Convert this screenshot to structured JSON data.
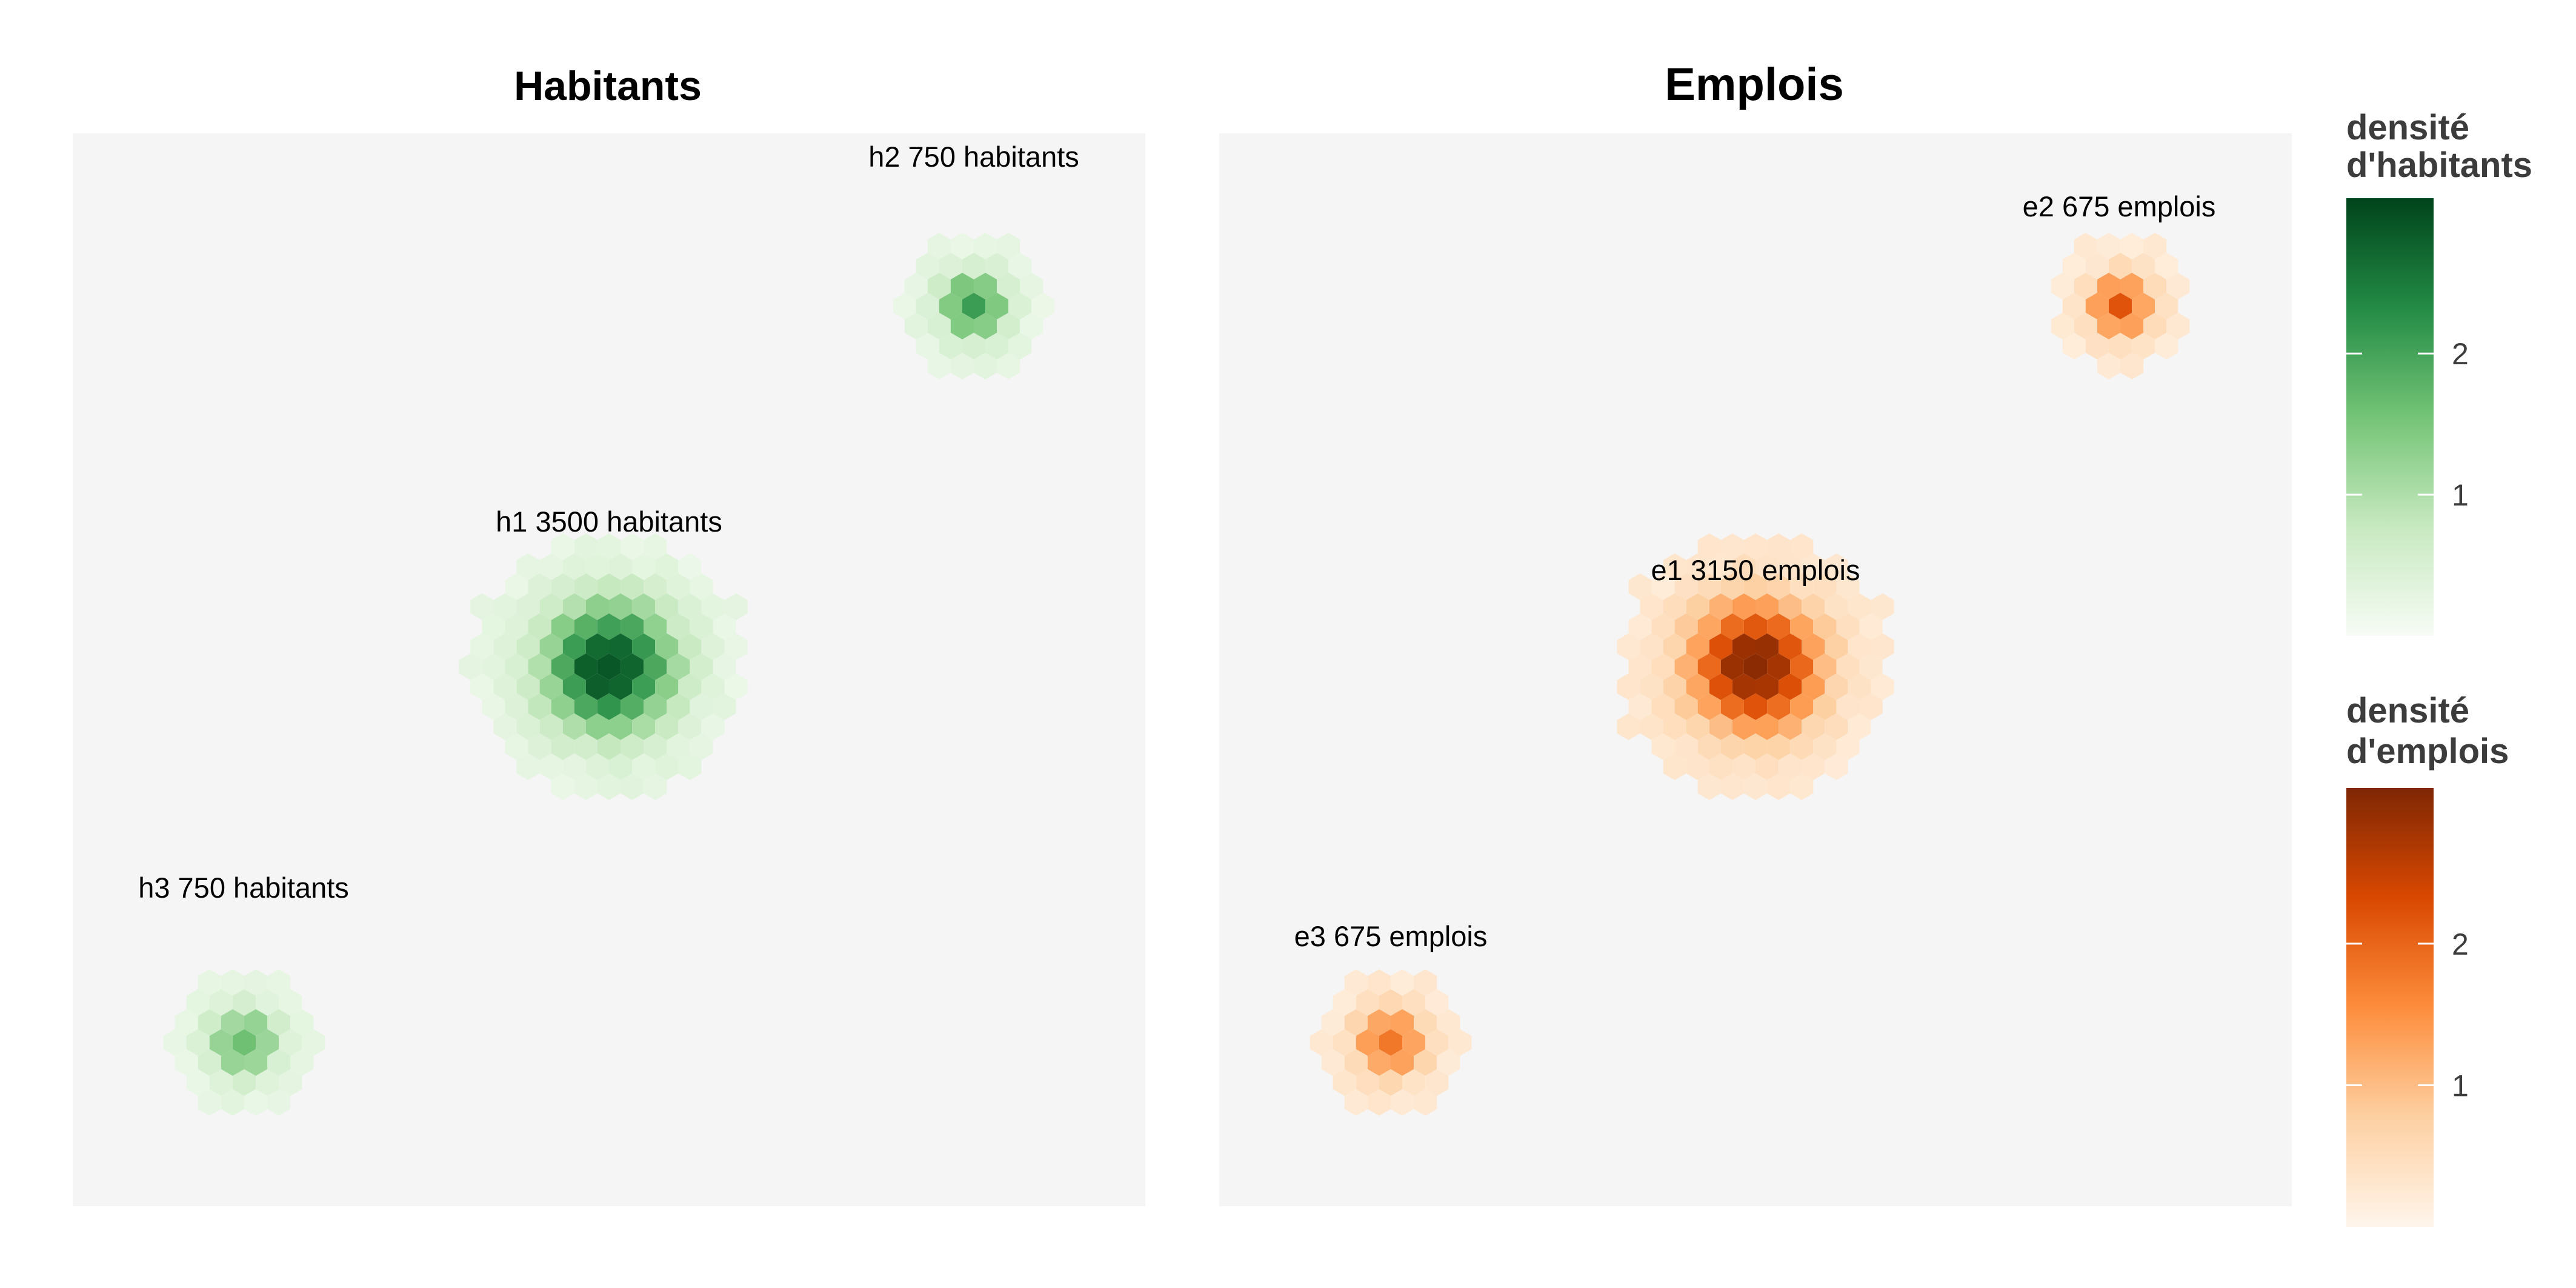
{
  "chart_data": [
    {
      "type": "heatmap",
      "title": "Habitants",
      "palette": [
        "#f7fcf5",
        "#c7e9c0",
        "#74c476",
        "#238b45",
        "#00441b"
      ],
      "background": "#f5f5f5",
      "grid": false,
      "clusters": [
        {
          "id": "h1",
          "label": "h1 3500 habitants",
          "value": 3500,
          "peak_density": 2.9
        },
        {
          "id": "h2",
          "label": "h2 750 habitants",
          "value": 750,
          "peak_density": 2.1
        },
        {
          "id": "h3",
          "label": "h3 750 habitants",
          "value": 750,
          "peak_density": 1.6
        }
      ]
    },
    {
      "type": "heatmap",
      "title": "Emplois",
      "palette": [
        "#fff5eb",
        "#fdd0a2",
        "#fd8d3c",
        "#d94801",
        "#7f2704"
      ],
      "background": "#f5f5f5",
      "grid": false,
      "clusters": [
        {
          "id": "e1",
          "label": "e1 3150 emplois",
          "value": 3150,
          "peak_density": 3.0
        },
        {
          "id": "e2",
          "label": "e2 675 emplois",
          "value": 675,
          "peak_density": 2.2
        },
        {
          "id": "e3",
          "label": "e3 675 emplois",
          "value": 675,
          "peak_density": 1.8
        }
      ]
    }
  ],
  "legends": [
    {
      "title_line1": "densité",
      "title_line2": "d'habitants",
      "ticks": [
        {
          "value": 2,
          "label": "2"
        },
        {
          "value": 1,
          "label": "1"
        }
      ],
      "range": [
        0,
        3.1
      ],
      "placement": "right"
    },
    {
      "title_line1": "densité",
      "title_line2": "d'emplois",
      "ticks": [
        {
          "value": 2,
          "label": "2"
        },
        {
          "value": 1,
          "label": "1"
        }
      ],
      "range": [
        0,
        3.1
      ],
      "placement": "right"
    }
  ]
}
